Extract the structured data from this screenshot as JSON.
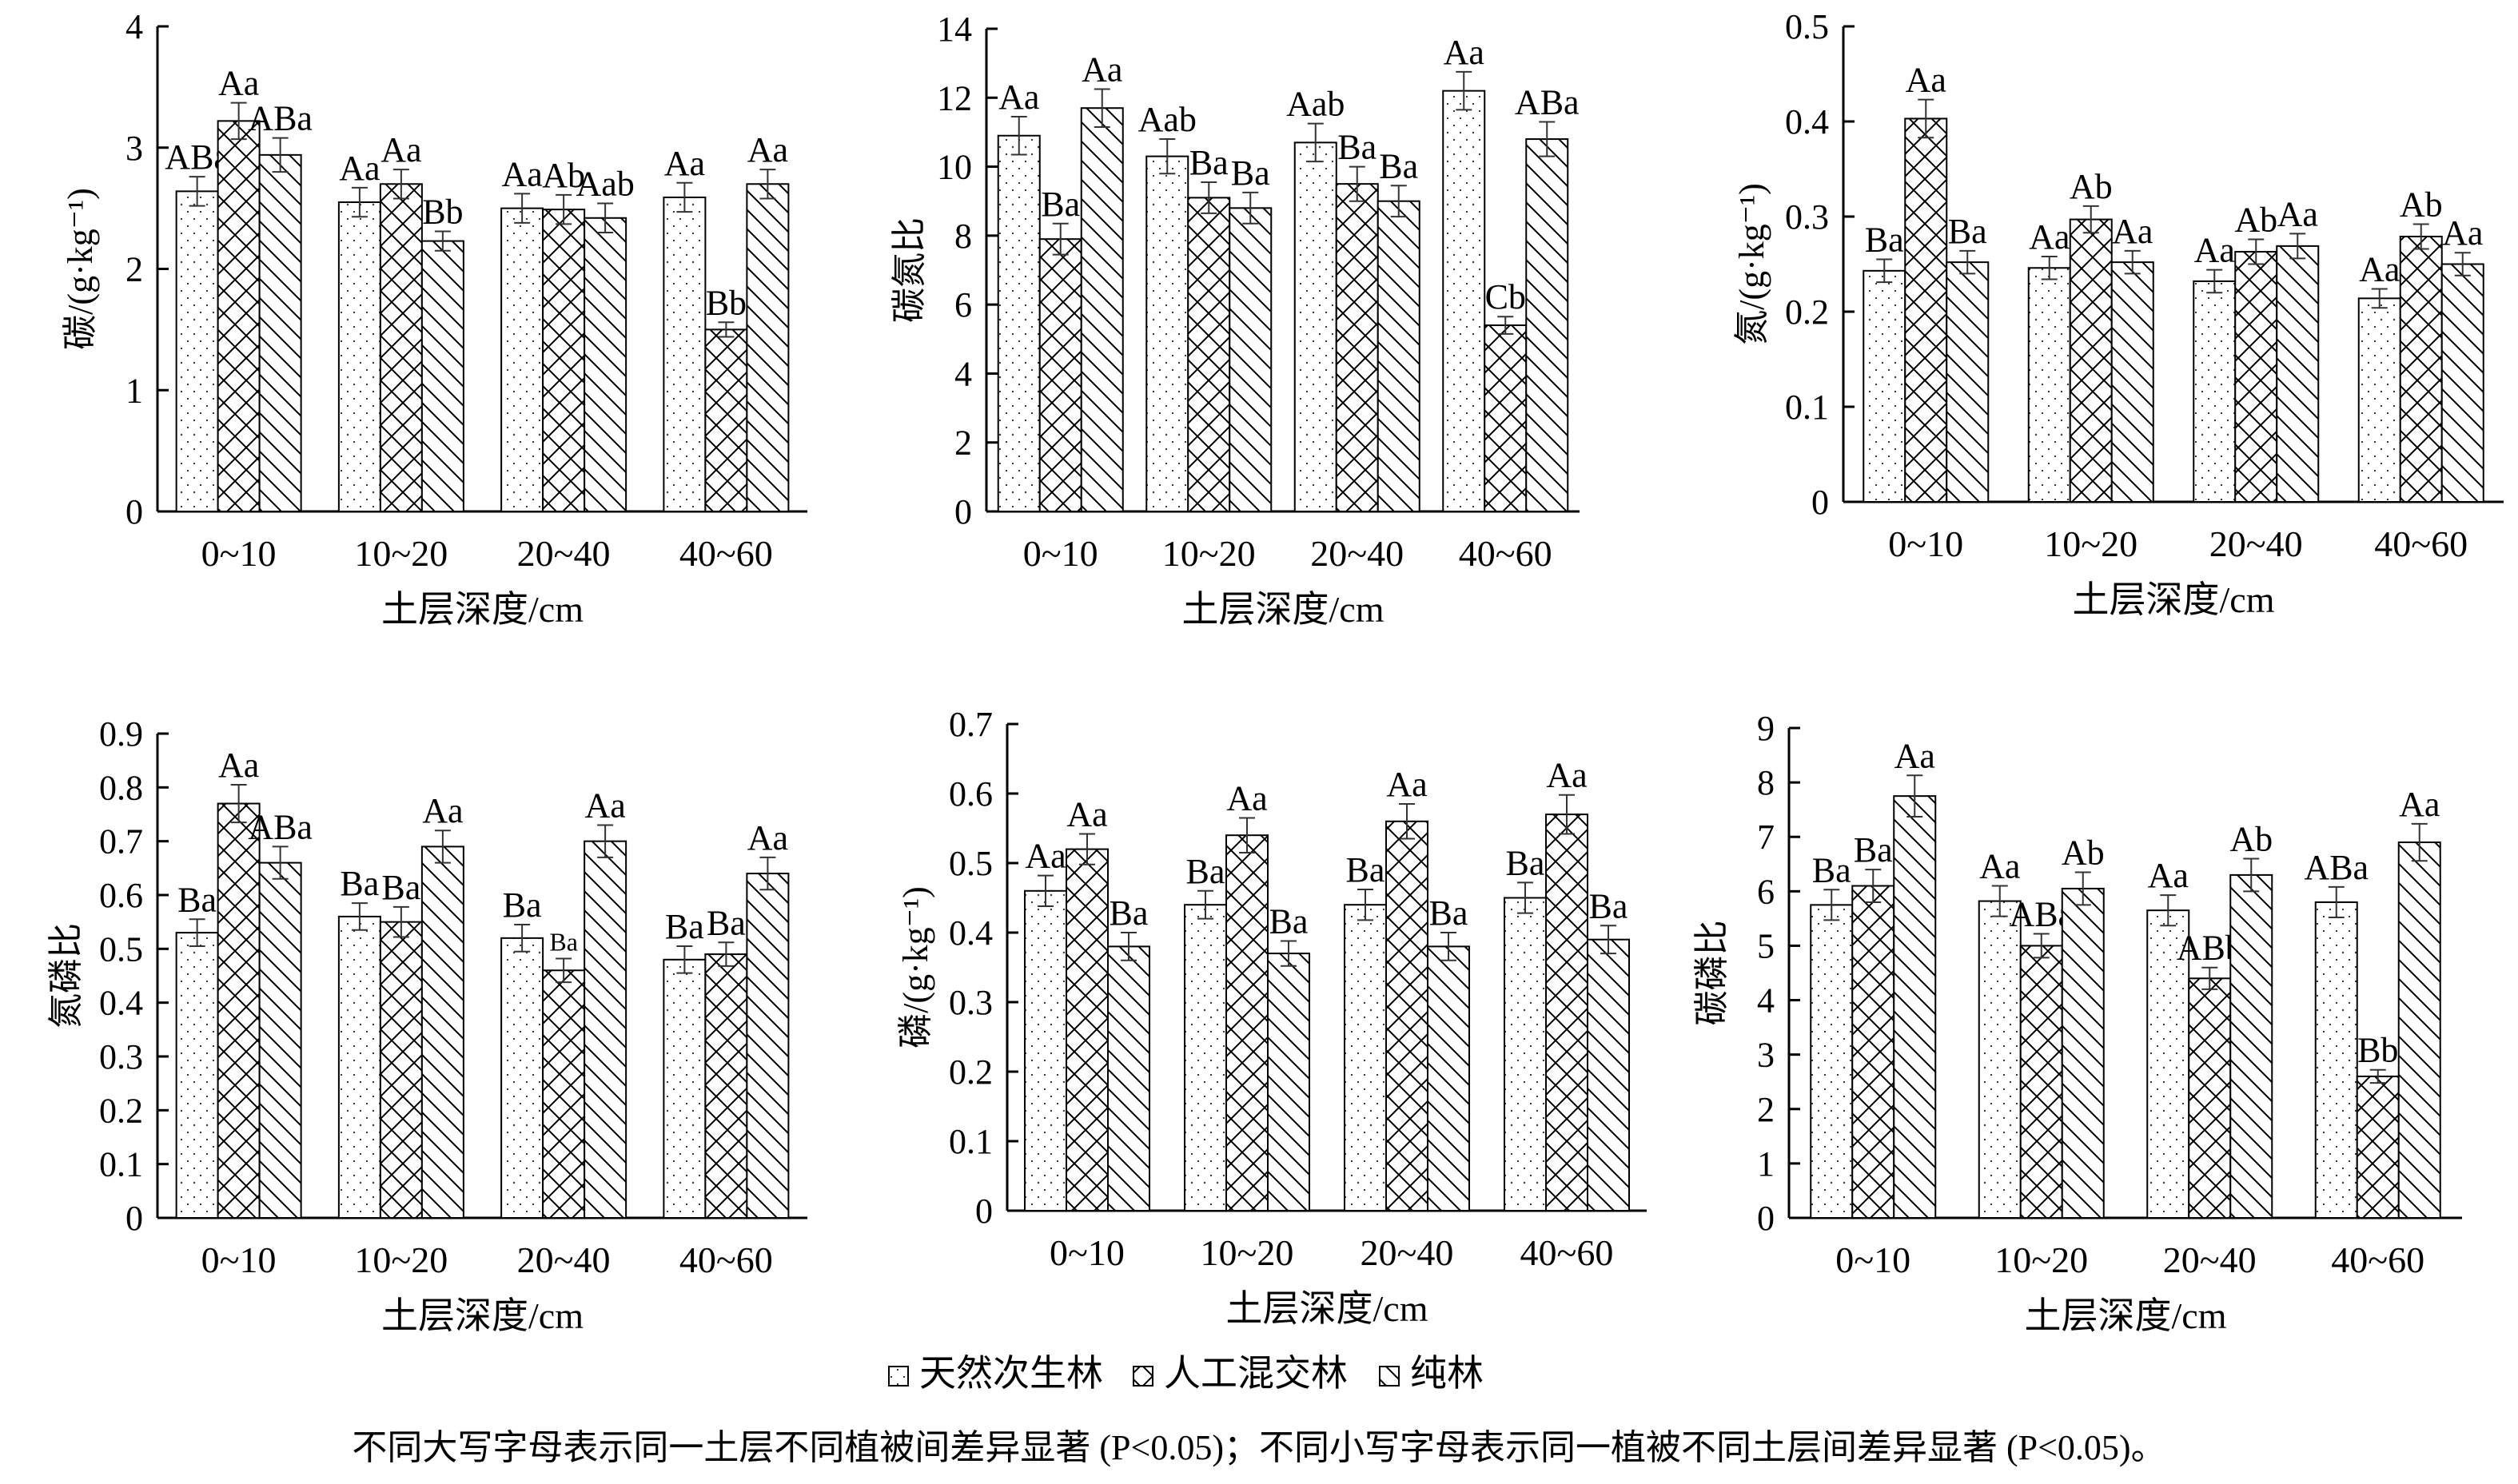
{
  "legend": [
    {
      "label": "天然次生林",
      "pattern": "dots"
    },
    {
      "label": "人工混交林",
      "pattern": "cross"
    },
    {
      "label": "纯林",
      "pattern": "diag"
    }
  ],
  "caption": "不同大写字母表示同一土层不同植被间差异显著 (P<0.05)；不同小写字母表示同一植被不同土层间差异显著 (P<0.05)。",
  "chart_data": [
    {
      "type": "bar",
      "title": "",
      "ylabel": "碳/(g·kg⁻¹)",
      "xlabel": "土层深度/cm",
      "categories": [
        "0~10",
        "10~20",
        "20~40",
        "40~60"
      ],
      "ylim": [
        0,
        4
      ],
      "yticks": [
        0,
        1,
        2,
        3,
        4
      ],
      "series": [
        {
          "name": "天然次生林",
          "values": [
            2.64,
            2.55,
            2.5,
            2.59
          ],
          "errors": [
            0.12,
            0.12,
            0.12,
            0.12
          ],
          "labels": [
            "ABa",
            "Aa",
            "Aa",
            "Aa"
          ]
        },
        {
          "name": "人工混交林",
          "values": [
            3.22,
            2.7,
            2.49,
            1.5
          ],
          "errors": [
            0.15,
            0.12,
            0.12,
            0.06
          ],
          "labels": [
            "Aa",
            "Aa",
            "Ab",
            "Bb"
          ]
        },
        {
          "name": "纯林",
          "values": [
            2.94,
            2.23,
            2.42,
            2.7
          ],
          "errors": [
            0.14,
            0.08,
            0.12,
            0.12
          ],
          "labels": [
            "ABa",
            "Bb",
            "Aab",
            "Aa"
          ]
        }
      ]
    },
    {
      "type": "bar",
      "title": "",
      "ylabel": "碳氮比",
      "xlabel": "土层深度/cm",
      "categories": [
        "0~10",
        "10~20",
        "20~40",
        "40~60"
      ],
      "ylim": [
        0,
        14
      ],
      "yticks": [
        0,
        2,
        4,
        6,
        8,
        10,
        12,
        14
      ],
      "series": [
        {
          "name": "天然次生林",
          "values": [
            10.9,
            10.3,
            10.7,
            12.2
          ],
          "errors": [
            0.55,
            0.5,
            0.55,
            0.55
          ],
          "labels": [
            "Aa",
            "Aab",
            "Aab",
            "Aa"
          ]
        },
        {
          "name": "人工混交林",
          "values": [
            7.9,
            9.1,
            9.5,
            5.4
          ],
          "errors": [
            0.45,
            0.45,
            0.5,
            0.25
          ],
          "labels": [
            "Ba",
            "Ba",
            "Ba",
            "Cb"
          ]
        },
        {
          "name": "纯林",
          "values": [
            11.7,
            8.8,
            9.0,
            10.8
          ],
          "errors": [
            0.55,
            0.45,
            0.45,
            0.5
          ],
          "labels": [
            "Aa",
            "Ba",
            "Ba",
            "ABa"
          ]
        }
      ]
    },
    {
      "type": "bar",
      "title": "",
      "ylabel": "氮/(g·kg⁻¹)",
      "xlabel": "土层深度/cm",
      "categories": [
        "0~10",
        "10~20",
        "20~40",
        "40~60"
      ],
      "ylim": [
        0,
        0.5
      ],
      "yticks": [
        0,
        0.1,
        0.2,
        0.3,
        0.4,
        0.5
      ],
      "series": [
        {
          "name": "天然次生林",
          "values": [
            0.243,
            0.246,
            0.232,
            0.214
          ],
          "errors": [
            0.012,
            0.012,
            0.012,
            0.01
          ],
          "labels": [
            "Ba",
            "Aa",
            "Aa",
            "Aa"
          ]
        },
        {
          "name": "人工混交林",
          "values": [
            0.403,
            0.297,
            0.263,
            0.279
          ],
          "errors": [
            0.02,
            0.014,
            0.013,
            0.013
          ],
          "labels": [
            "Aa",
            "Ab",
            "Ab",
            "Ab"
          ]
        },
        {
          "name": "纯林",
          "values": [
            0.252,
            0.252,
            0.269,
            0.25
          ],
          "errors": [
            0.012,
            0.012,
            0.013,
            0.012
          ],
          "labels": [
            "Ba",
            "Aa",
            "Aa",
            "Aa"
          ]
        }
      ]
    },
    {
      "type": "bar",
      "title": "",
      "ylabel": "氮磷比",
      "xlabel": "土层深度/cm",
      "categories": [
        "0~10",
        "10~20",
        "20~40",
        "40~60"
      ],
      "ylim": [
        0,
        0.9
      ],
      "yticks": [
        0,
        0.1,
        0.2,
        0.3,
        0.4,
        0.5,
        0.6,
        0.7,
        0.8,
        0.9
      ],
      "series": [
        {
          "name": "天然次生林",
          "values": [
            0.53,
            0.56,
            0.52,
            0.48
          ],
          "errors": [
            0.025,
            0.025,
            0.025,
            0.025
          ],
          "labels": [
            "Ba",
            "Ba",
            "Ba",
            "Ba"
          ]
        },
        {
          "name": "人工混交林",
          "values": [
            0.77,
            0.55,
            0.46,
            0.49
          ],
          "errors": [
            0.035,
            0.028,
            0.022,
            0.022
          ],
          "labels": [
            "Aa",
            "Ba",
            "Ba",
            "Ba"
          ]
        },
        {
          "name": "纯林",
          "values": [
            0.66,
            0.69,
            0.7,
            0.64
          ],
          "errors": [
            0.03,
            0.03,
            0.03,
            0.03
          ],
          "labels": [
            "ABa",
            "Aa",
            "Aa",
            "Aa"
          ]
        }
      ]
    },
    {
      "type": "bar",
      "title": "",
      "ylabel": "磷/(g·kg⁻¹)",
      "xlabel": "土层深度/cm",
      "categories": [
        "0~10",
        "10~20",
        "20~40",
        "40~60"
      ],
      "ylim": [
        0,
        0.7
      ],
      "yticks": [
        0,
        0.1,
        0.2,
        0.3,
        0.4,
        0.5,
        0.6,
        0.7
      ],
      "series": [
        {
          "name": "天然次生林",
          "values": [
            0.46,
            0.44,
            0.44,
            0.45
          ],
          "errors": [
            0.022,
            0.02,
            0.022,
            0.022
          ],
          "labels": [
            "Aa",
            "Ba",
            "Ba",
            "Ba"
          ]
        },
        {
          "name": "人工混交林",
          "values": [
            0.52,
            0.54,
            0.56,
            0.57
          ],
          "errors": [
            0.022,
            0.025,
            0.025,
            0.028
          ],
          "labels": [
            "Aa",
            "Aa",
            "Aa",
            "Aa"
          ]
        },
        {
          "name": "纯林",
          "values": [
            0.38,
            0.37,
            0.38,
            0.39
          ],
          "errors": [
            0.02,
            0.018,
            0.02,
            0.02
          ],
          "labels": [
            "Ba",
            "Ba",
            "Ba",
            "Ba"
          ]
        }
      ]
    },
    {
      "type": "bar",
      "title": "",
      "ylabel": "碳磷比",
      "xlabel": "土层深度/cm",
      "categories": [
        "0~10",
        "10~20",
        "20~40",
        "40~60"
      ],
      "ylim": [
        0,
        9
      ],
      "yticks": [
        0,
        1,
        2,
        3,
        4,
        5,
        6,
        7,
        8,
        9
      ],
      "series": [
        {
          "name": "天然次生林",
          "values": [
            5.75,
            5.82,
            5.65,
            5.8
          ],
          "errors": [
            0.28,
            0.28,
            0.28,
            0.28
          ],
          "labels": [
            "Ba",
            "Aa",
            "Aa",
            "ABa"
          ]
        },
        {
          "name": "人工混交林",
          "values": [
            6.1,
            5.0,
            4.4,
            2.6
          ],
          "errors": [
            0.3,
            0.22,
            0.2,
            0.12
          ],
          "labels": [
            "Ba",
            "ABa",
            "ABb",
            "Bb"
          ]
        },
        {
          "name": "纯林",
          "values": [
            7.75,
            6.05,
            6.3,
            6.9
          ],
          "errors": [
            0.38,
            0.3,
            0.3,
            0.34
          ],
          "labels": [
            "Aa",
            "Ab",
            "Ab",
            "Aa"
          ]
        }
      ]
    }
  ]
}
